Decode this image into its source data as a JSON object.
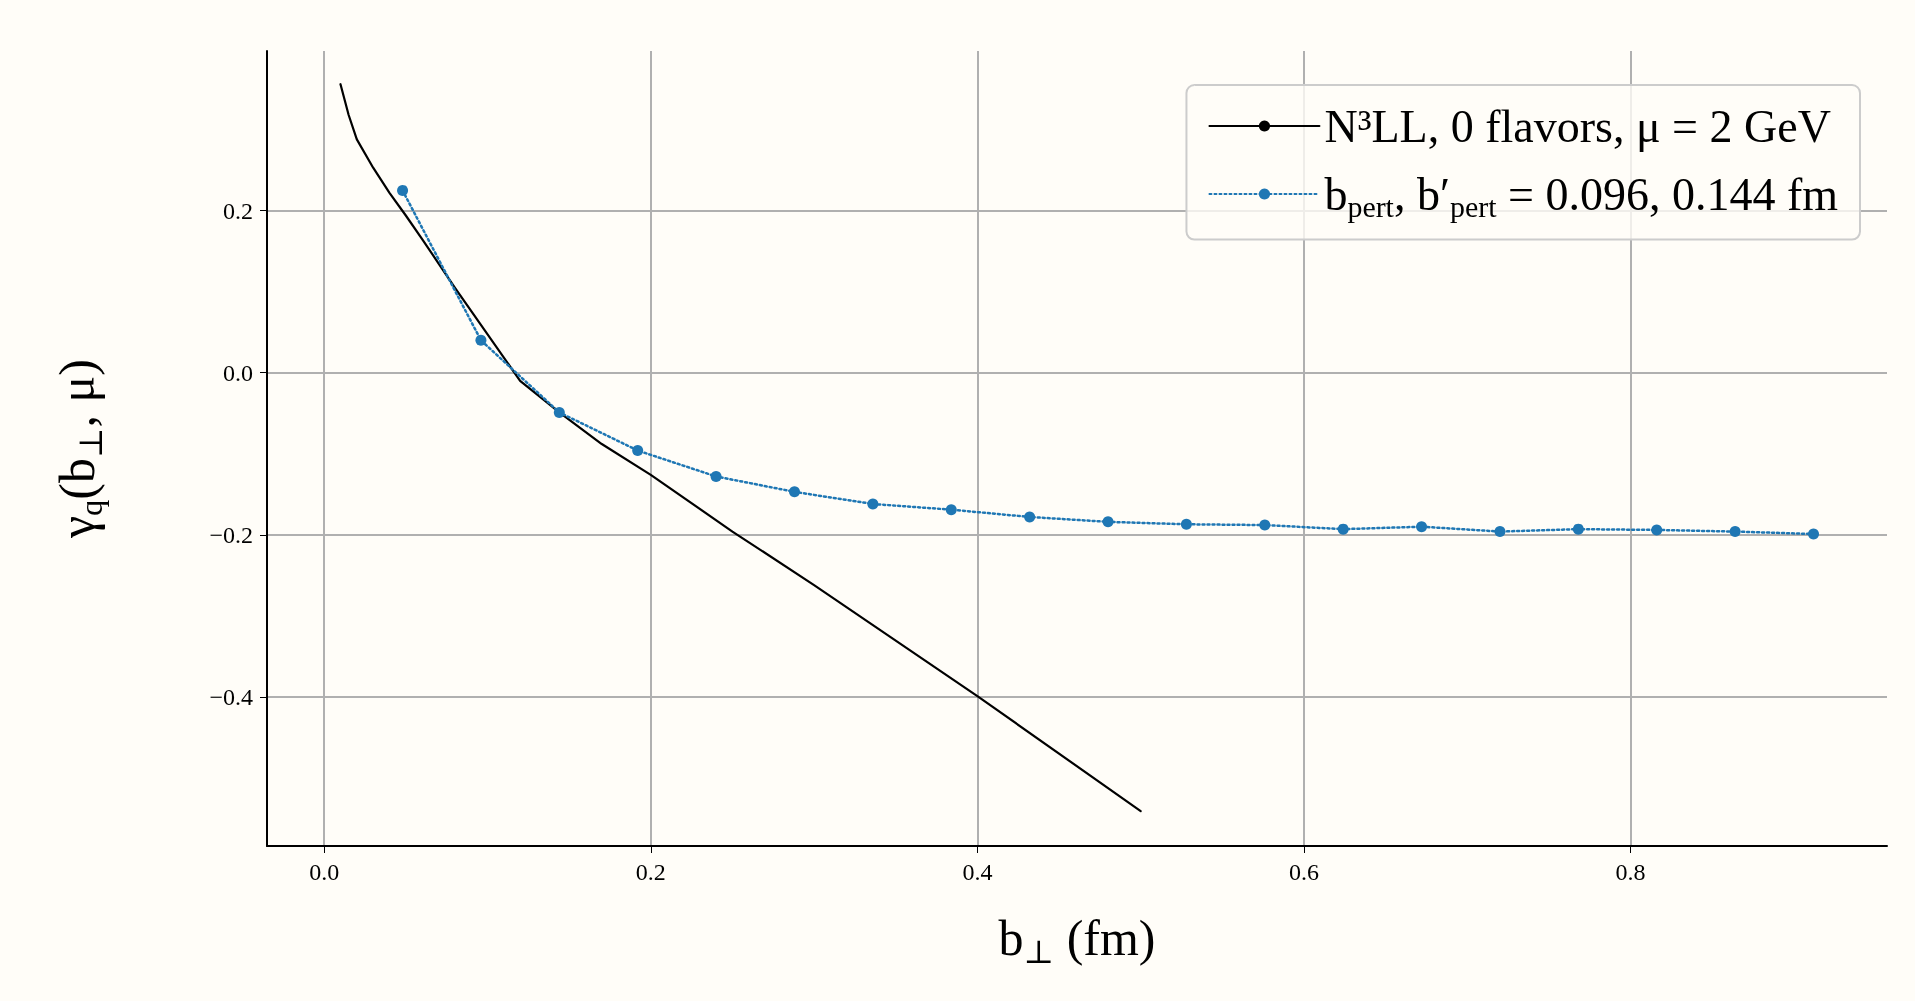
{
  "chart_data": {
    "type": "line",
    "xlabel": "b$_{⊥}$ (fm)",
    "ylabel": "γ$_{q}$(b$_{⊥}$, μ)",
    "series": [
      {
        "name": "N³LL, 0 flavors, μ = 2 GeV",
        "color": "#000000",
        "marker": "none",
        "line_style": "solid",
        "x": [
          0.01,
          0.015,
          0.02,
          0.03,
          0.04,
          0.05,
          0.06,
          0.07,
          0.08,
          0.12,
          0.144,
          0.17,
          0.2,
          0.25,
          0.3,
          0.4,
          0.5
        ],
        "values": [
          0.356,
          0.318,
          0.288,
          0.253,
          0.222,
          0.194,
          0.165,
          0.135,
          0.105,
          -0.01,
          -0.049,
          -0.088,
          -0.126,
          -0.196,
          -0.262,
          -0.399,
          -0.541
        ]
      },
      {
        "name": "b$_{pert}$, b′$_{pert}$ = 0.096, 0.144 fm",
        "color": "#1f77b4",
        "marker": "circle",
        "line_style": "dotted",
        "x": [
          0.048,
          0.096,
          0.144,
          0.192,
          0.24,
          0.288,
          0.336,
          0.384,
          0.432,
          0.48,
          0.528,
          0.576,
          0.624,
          0.672,
          0.72,
          0.768,
          0.816,
          0.864,
          0.912
        ],
        "values": [
          0.225,
          0.04,
          -0.049,
          -0.096,
          -0.128,
          -0.147,
          -0.162,
          -0.169,
          -0.178,
          -0.184,
          -0.187,
          -0.188,
          -0.193,
          -0.19,
          -0.196,
          -0.193,
          -0.194,
          -0.196,
          -0.199
        ]
      }
    ],
    "xlim": [
      -0.035,
      0.957
    ],
    "ylim": [
      -0.584,
      0.397
    ],
    "xticks": [
      {
        "value": 0,
        "label": "0.0"
      },
      {
        "value": 0.2,
        "label": "0.2"
      },
      {
        "value": 0.4,
        "label": "0.4"
      },
      {
        "value": 0.6,
        "label": "0.6"
      },
      {
        "value": 0.8,
        "label": "0.8"
      }
    ],
    "yticks": [
      {
        "value": -0.4,
        "label": "−0.4"
      },
      {
        "value": -0.2,
        "label": "−0.2"
      },
      {
        "value": 0,
        "label": "0.0"
      },
      {
        "value": 0.2,
        "label": "0.2"
      }
    ],
    "grid": true,
    "legend": "top right"
  }
}
